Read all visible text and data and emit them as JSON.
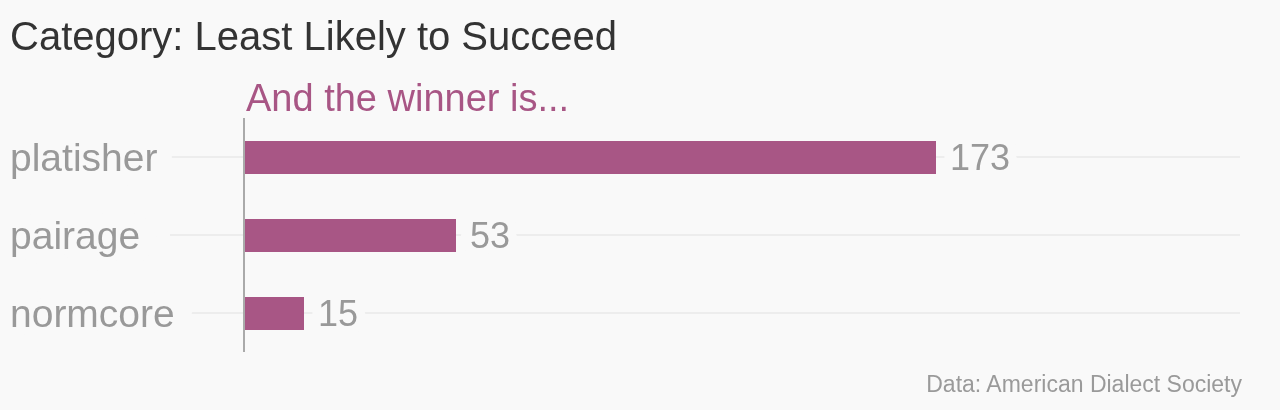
{
  "chart_data": {
    "type": "bar",
    "orientation": "horizontal",
    "title": "Category: Least Likely to Succeed",
    "categories": [
      "platisher",
      "pairage",
      "normcore"
    ],
    "series": [
      {
        "name": "And the winner is...",
        "color": "#a85685",
        "values": [
          173,
          53,
          15
        ]
      }
    ],
    "data_labels": true,
    "grid": "y",
    "annotations": [
      "Data: American Dialect Society"
    ]
  }
}
